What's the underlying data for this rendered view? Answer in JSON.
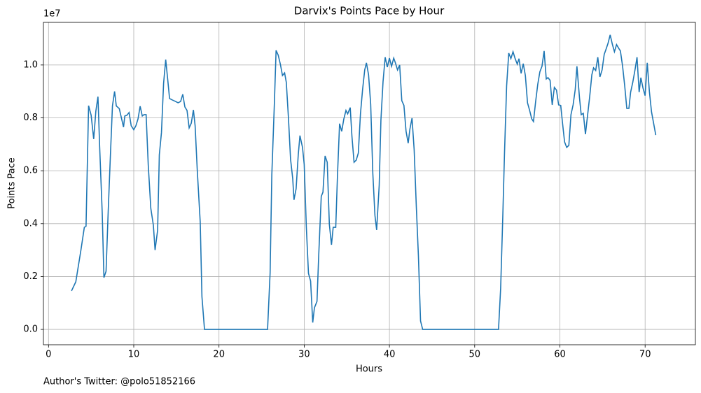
{
  "chart_data": {
    "type": "line",
    "title": "Darvix's Points Pace by Hour",
    "x_label": "Hours",
    "y_label": "Points Pace",
    "y_offset_label": "1e7",
    "footnote": "Author's Twitter: @polo51852166",
    "xlim": [
      -0.6,
      75.9
    ],
    "ylim": [
      -0.058,
      1.161
    ],
    "xticks": [
      0,
      10,
      20,
      30,
      40,
      50,
      60,
      70
    ],
    "yticks": [
      {
        "value": 0,
        "label": "0.0"
      },
      0.2,
      0.4,
      0.6,
      0.8,
      {
        "value": 1,
        "label": "1.0"
      }
    ],
    "grid": true,
    "series": [
      {
        "name": "Points Pace",
        "color": "#1f77b4",
        "x": [
          2.7,
          3.2,
          3.8,
          4.2,
          4.4,
          4.7,
          5.0,
          5.3,
          5.55,
          5.8,
          6.0,
          6.3,
          6.5,
          6.75,
          7.0,
          7.25,
          7.5,
          7.75,
          7.95,
          8.3,
          8.55,
          8.8,
          8.95,
          9.2,
          9.45,
          9.7,
          10.0,
          10.25,
          10.5,
          10.75,
          11.0,
          11.2,
          11.45,
          11.7,
          12.0,
          12.3,
          12.5,
          12.8,
          13.0,
          13.25,
          13.5,
          13.75,
          14.0,
          14.2,
          14.5,
          14.9,
          15.2,
          15.5,
          15.75,
          16.0,
          16.25,
          16.5,
          16.75,
          17.0,
          17.2,
          17.45,
          17.8,
          18.0,
          18.3,
          25.7,
          26.0,
          26.2,
          26.5,
          26.7,
          26.95,
          27.2,
          27.45,
          27.7,
          27.9,
          28.15,
          28.4,
          28.65,
          28.8,
          29.05,
          29.3,
          29.5,
          29.8,
          30.0,
          30.25,
          30.5,
          30.75,
          31.0,
          31.2,
          31.5,
          31.7,
          32.0,
          32.2,
          32.45,
          32.7,
          32.95,
          33.2,
          33.4,
          33.7,
          33.9,
          34.15,
          34.4,
          34.65,
          34.9,
          35.1,
          35.4,
          35.6,
          35.85,
          36.1,
          36.35,
          36.6,
          36.85,
          37.1,
          37.3,
          37.55,
          37.8,
          38.05,
          38.3,
          38.5,
          38.8,
          39.0,
          39.25,
          39.5,
          39.75,
          40.0,
          40.25,
          40.5,
          40.7,
          40.95,
          41.2,
          41.45,
          41.7,
          41.95,
          42.2,
          42.4,
          42.65,
          42.9,
          43.15,
          43.4,
          43.65,
          43.9,
          52.8,
          53.05,
          53.3,
          53.5,
          53.75,
          54.0,
          54.25,
          54.5,
          54.75,
          55.0,
          55.2,
          55.45,
          55.7,
          55.95,
          56.2,
          56.45,
          56.7,
          56.9,
          57.15,
          57.4,
          57.65,
          57.9,
          58.15,
          58.4,
          58.6,
          58.85,
          59.1,
          59.35,
          59.6,
          59.85,
          60.1,
          60.3,
          60.55,
          60.8,
          61.05,
          61.3,
          61.55,
          61.8,
          62.0,
          62.3,
          62.5,
          62.75,
          63.0,
          63.25,
          63.5,
          63.75,
          63.95,
          64.2,
          64.45,
          64.7,
          64.95,
          65.2,
          65.4,
          65.65,
          65.9,
          66.15,
          66.4,
          66.65,
          66.9,
          67.1,
          67.35,
          67.6,
          67.85,
          68.1,
          68.3,
          68.55,
          68.8,
          69.05,
          69.3,
          69.5,
          69.75,
          70.0,
          70.25,
          70.5,
          70.75,
          71.25
        ],
        "values": [
          0.146,
          0.18,
          0.3,
          0.386,
          0.39,
          0.846,
          0.81,
          0.72,
          0.825,
          0.88,
          0.69,
          0.44,
          0.196,
          0.22,
          0.445,
          0.65,
          0.845,
          0.9,
          0.845,
          0.835,
          0.8,
          0.765,
          0.807,
          0.81,
          0.82,
          0.77,
          0.755,
          0.77,
          0.796,
          0.844,
          0.807,
          0.812,
          0.812,
          0.622,
          0.458,
          0.394,
          0.3,
          0.375,
          0.66,
          0.744,
          0.93,
          1.02,
          0.94,
          0.873,
          0.868,
          0.862,
          0.857,
          0.862,
          0.889,
          0.841,
          0.828,
          0.762,
          0.78,
          0.83,
          0.77,
          0.603,
          0.405,
          0.124,
          0,
          0,
          0.214,
          0.585,
          0.855,
          1.055,
          1.037,
          1.003,
          0.96,
          0.97,
          0.934,
          0.8,
          0.643,
          0.571,
          0.49,
          0.532,
          0.66,
          0.733,
          0.688,
          0.624,
          0.386,
          0.212,
          0.183,
          0.026,
          0.082,
          0.106,
          0.278,
          0.503,
          0.519,
          0.656,
          0.632,
          0.397,
          0.32,
          0.386,
          0.386,
          0.579,
          0.778,
          0.749,
          0.796,
          0.828,
          0.815,
          0.839,
          0.73,
          0.632,
          0.64,
          0.667,
          0.815,
          0.907,
          0.981,
          1.008,
          0.963,
          0.852,
          0.59,
          0.431,
          0.376,
          0.545,
          0.791,
          0.937,
          1.029,
          0.992,
          1.026,
          0.995,
          1.026,
          1.008,
          0.981,
          1.0,
          0.865,
          0.847,
          0.749,
          0.704,
          0.757,
          0.799,
          0.68,
          0.468,
          0.278,
          0.032,
          0,
          0,
          0.156,
          0.426,
          0.664,
          0.921,
          1.045,
          1.024,
          1.05,
          1.024,
          1.003,
          1.024,
          0.968,
          1.005,
          0.96,
          0.857,
          0.828,
          0.796,
          0.786,
          0.86,
          0.926,
          0.974,
          0.995,
          1.053,
          0.947,
          0.952,
          0.942,
          0.849,
          0.915,
          0.905,
          0.849,
          0.847,
          0.783,
          0.709,
          0.688,
          0.696,
          0.812,
          0.849,
          0.907,
          0.995,
          0.876,
          0.812,
          0.817,
          0.738,
          0.81,
          0.881,
          0.963,
          0.989,
          0.979,
          1.029,
          0.955,
          0.981,
          1.04,
          1.058,
          1.082,
          1.114,
          1.079,
          1.05,
          1.077,
          1.063,
          1.053,
          0.997,
          0.923,
          0.836,
          0.836,
          0.897,
          0.934,
          0.979,
          1.029,
          0.897,
          0.952,
          0.913,
          0.884,
          1.008,
          0.9,
          0.823,
          0.735
        ]
      }
    ]
  }
}
